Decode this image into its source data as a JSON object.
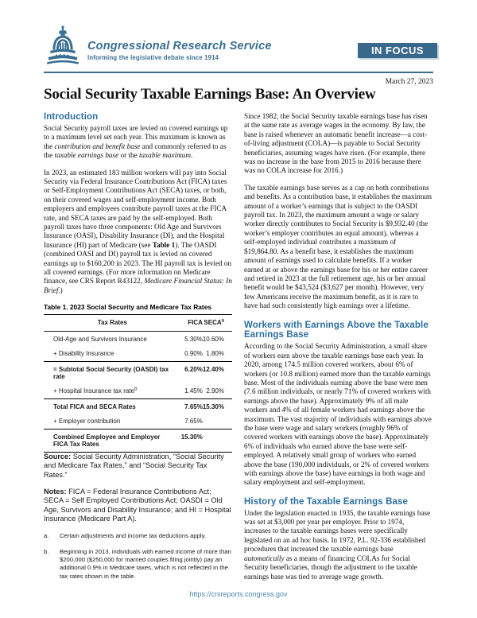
{
  "header": {
    "brand": "Congressional Research Service",
    "tagline": "Informing the legislative debate since 1914",
    "badge": "IN FOCUS",
    "date": "March 27, 2023",
    "title": "Social Security Taxable Earnings Base: An Overview"
  },
  "colors": {
    "brand_blue": "#3a6e91",
    "badge_blue": "#39688d",
    "heading_blue": "#2c6f9f",
    "link_blue": "#4e86ad"
  },
  "icons": {
    "logo": "capitol-dome-icon"
  },
  "left": {
    "intro_heading": "Introduction",
    "p1": [
      [
        "Social Security payroll taxes are levied on covered earnings up to a maximum level set each year. This maximum is known as the "
      ],
      [
        "contribution and benefit base",
        "i"
      ],
      [
        " and commonly referred to as the "
      ],
      [
        "taxable earnings base",
        "i"
      ],
      [
        " or the "
      ],
      [
        "taxable maximum",
        "i"
      ],
      [
        "."
      ]
    ],
    "p2": [
      [
        "In 2023, an estimated 183 million workers will pay into Social Security via Federal Insurance Contributions Act (FICA) taxes or Self-Employment Contributions Act (SECA) taxes, or both, on their covered wages and self-employment income. Both employers and employees contribute payroll taxes at the FICA rate, and SECA taxes are paid by the self-employed. Both payroll taxes have three components: Old Age and Survivors Insurance (OASI), Disability Insurance (DI), and the Hospital Insurance (HI) part of Medicare (see "
      ],
      [
        "Table 1",
        "b"
      ],
      [
        "). The OASDI (combined OASI and DI) payroll tax is levied on covered earnings up to $160,200 in 2023. The HI payroll tax is levied on all covered earnings. (For more information on Medicare finance, see CRS Report R43122, "
      ],
      [
        "Medicare Financial Status: In Brief",
        "i"
      ],
      [
        ".)"
      ]
    ],
    "table": {
      "title": "Table 1. 2023 Social Security and Medicare Tax Rates",
      "columns": [
        {
          "label": "Tax Rates"
        },
        {
          "label": "FICA"
        },
        {
          "label": "SECA",
          "sup": "a"
        }
      ],
      "rows": [
        {
          "label": "Old-Age and Survivors Insurance",
          "fica": "5.30%",
          "seca": "10.60%"
        },
        {
          "label": "+ Disability Insurance",
          "fica": "0.90%",
          "seca": "1.80%"
        },
        {
          "label": "= Subtotal Social Security (OASDI) tax rate",
          "fica": "6.20%",
          "seca": "12.40%",
          "bold": true,
          "rule": true
        },
        {
          "label": "+ Hospital Insurance tax rate",
          "sup": "b",
          "fica": "1.45%",
          "seca": "2.90%"
        },
        {
          "label": "Total FICA and SECA Rates",
          "fica": "7.65%",
          "seca": "15.30%",
          "bold": true,
          "rule": true
        },
        {
          "label": "+ Employer contribution",
          "fica": "7.65%",
          "seca": ""
        },
        {
          "label": "Combined Employee and Employer FICA Tax Rates",
          "fica": "15.30%",
          "seca": "",
          "bold": true,
          "rule": true
        }
      ],
      "source": [
        [
          "Source:",
          "b"
        ],
        [
          " Social Security Administration, “Social Security and Medicare Tax Rates,” and “Social Security Tax Rates.”"
        ]
      ],
      "notes": [
        [
          "Notes:",
          "b"
        ],
        [
          " FICA = Federal Insurance Contributions Act; SECA = Self Employed Contributions Act; OASDI = Old Age, Survivors and Disability Insurance; and HI = Hospital Insurance (Medicare Part A)."
        ]
      ],
      "footnotes": [
        {
          "marker": "a.",
          "text": "Certain adjustments and income tax deductions apply."
        },
        {
          "marker": "b.",
          "text": "Beginning in 2013, individuals with earned income of more than $200,000 ($250,000 for married couples filing jointly) pay an additional 0.9% in Medicare taxes, which is not reflected in the tax rates shown in the table."
        }
      ]
    }
  },
  "right": {
    "p1": [
      [
        "Since 1982, the Social Security taxable earnings base has risen at the same rate as average wages in the economy. By law, the base is raised whenever an automatic benefit increase—a cost-of-living adjustment (COLA)—is payable to Social Security beneficiaries, assuming wages have risen. (For example, there was no increase in the base from 2015 to 2016 because there was no COLA increase for 2016.)"
      ]
    ],
    "p2": [
      [
        "The taxable earnings base serves as a cap on both contributions and benefits. As a contribution base, it establishes the maximum amount of a worker’s earnings that is subject to the OASDI payroll tax. In 2023, the maximum amount a wage or salary worker directly contributes to Social Security is $9,932.40 (the worker’s employer contributes an equal amount), whereas a self-employed individual contributes a maximum of $19,864.80. As a benefit base, it establishes the maximum amount of earnings used to calculate benefits. If a worker earned at or above the earnings base for his or her entire career and retired in 2023 at the full retirement age, his or her annual benefit would be $43,524 ($3,627 per month). However, very few Americans receive the maximum benefit, as it is rare to have had such consistently high earnings over a lifetime."
      ]
    ],
    "workers_heading": "Workers with Earnings Above the Taxable Earnings Base",
    "p3": [
      [
        "According to the Social Security Administration, a small share of workers earn above the taxable earnings base each year. In 2020, among 174.5 million covered workers, about 6% of workers (or 10.8 million) earned more than the taxable earnings base. Most of the individuals earning above the base were men (7.6 million individuals, or nearly 71% of covered workers with earnings above the base). Approximately 9% of all male workers and 4% of all female workers had earnings above the maximum. The vast majority of individuals with earnings above the base were wage and salary workers (roughly 96% of covered workers with earnings above the base). Approximately 6% of individuals who earned above the base were self-employed. A relatively small group of workers who earned above the base (190,000 individuals, or 2% of covered workers with earnings above the base) have earnings in both wage and salary employment and self-employment."
      ]
    ],
    "history_heading": "History of the Taxable Earnings Base",
    "p4": [
      [
        "Under the legislation enacted in 1935, the taxable earnings base was set at $3,000 per year per employer. Prior to 1974, increases to the taxable earnings bases were specifically legislated on an ad hoc basis. In 1972, P.L. 92-336 established procedures that increased the taxable earnings base "
      ],
      [
        "automatically",
        "i"
      ],
      [
        " as a means of financing COLAs for Social Security beneficiaries, though the adjustment to the taxable earnings base was tied to average wage growth."
      ]
    ]
  },
  "footer": {
    "url": "https://crsreports.congress.gov"
  }
}
